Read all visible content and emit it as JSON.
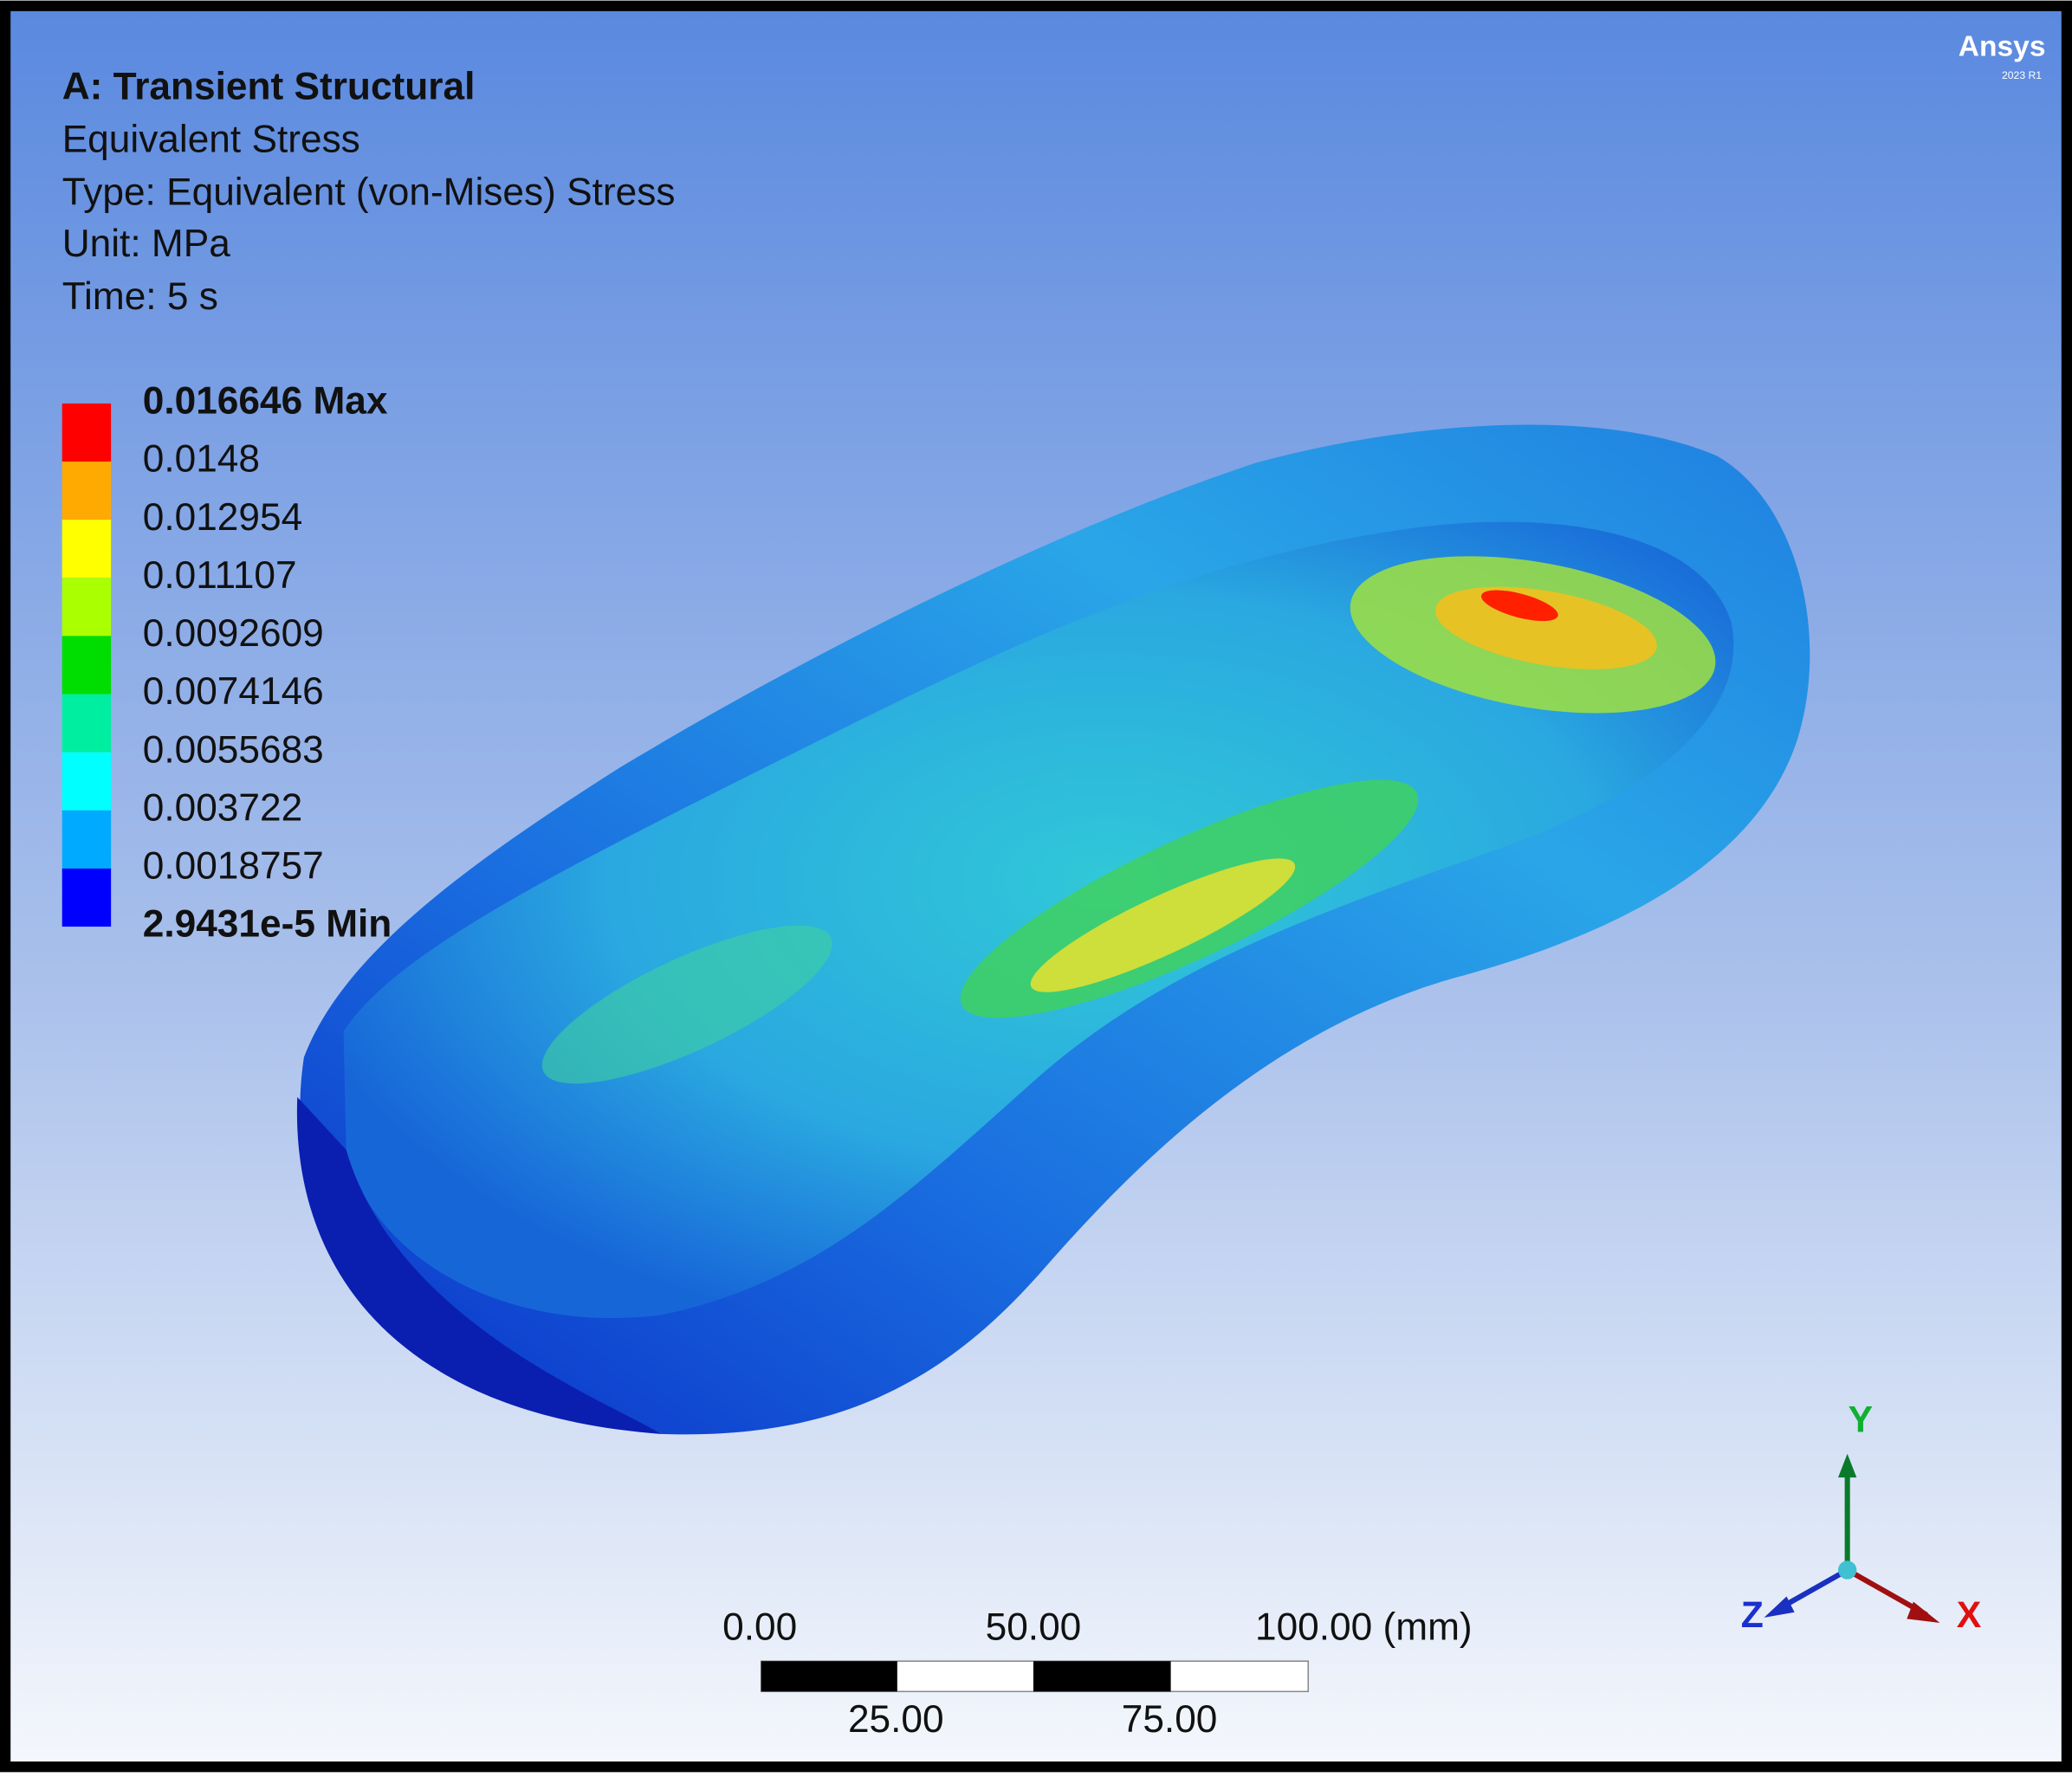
{
  "header": {
    "title": "A: Transient Structural",
    "lines": [
      "Equivalent Stress",
      "Type: Equivalent (von-Mises) Stress",
      "Unit: MPa",
      "Time: 5 s"
    ]
  },
  "legend": {
    "labels": [
      "0.016646 Max",
      "0.0148",
      "0.012954",
      "0.011107",
      "0.0092609",
      "0.0074146",
      "0.0055683",
      "0.003722",
      "0.0018757",
      "2.9431e-5 Min"
    ],
    "colors": [
      "#ff0000",
      "#ffaa00",
      "#ffff00",
      "#aaff00",
      "#00dd00",
      "#00eea0",
      "#00ffff",
      "#00aaff",
      "#0000ff"
    ]
  },
  "scale_bar": {
    "top_labels": [
      "0.00",
      "50.00",
      "100.00 (mm)"
    ],
    "bottom_labels": [
      "25.00",
      "75.00"
    ]
  },
  "triad": {
    "y": "Y",
    "x": "X",
    "z": "Z"
  },
  "logo": {
    "name": "Ansys",
    "version": "2023 R1"
  }
}
